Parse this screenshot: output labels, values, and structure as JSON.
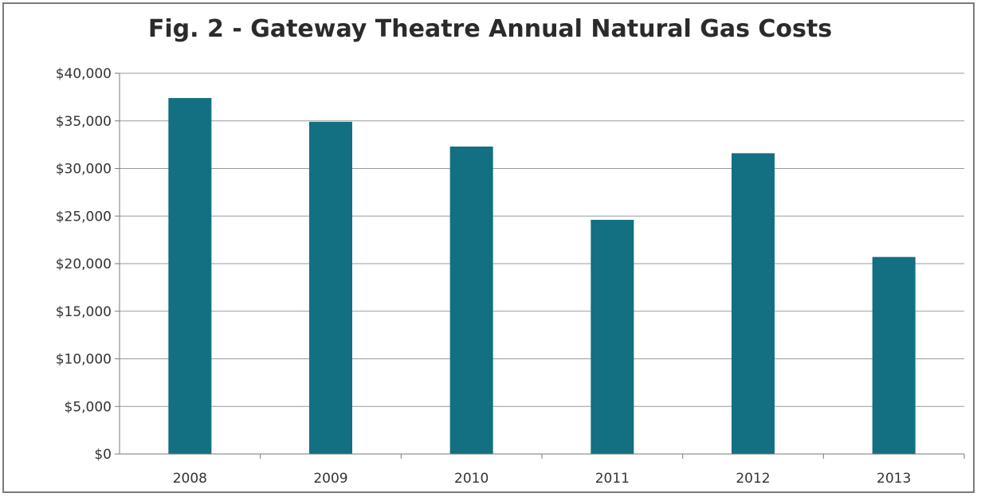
{
  "chart_data": {
    "type": "bar",
    "title": "Fig. 2 - Gateway Theatre Annual Natural Gas Costs",
    "categories": [
      "2008",
      "2009",
      "2010",
      "2011",
      "2012",
      "2013"
    ],
    "values": [
      37400,
      34900,
      32300,
      24600,
      31600,
      20700
    ],
    "ylim": [
      0,
      40000
    ],
    "yticks": [
      0,
      5000,
      10000,
      15000,
      20000,
      25000,
      30000,
      35000,
      40000
    ],
    "ytick_labels": [
      "$0",
      "$5,000",
      "$10,000",
      "$15,000",
      "$20,000",
      "$25,000",
      "$30,000",
      "$35,000",
      "$40,000"
    ],
    "xlabel": "",
    "ylabel": "",
    "grid": true,
    "bar_color": "#136f82",
    "gridline_color": "#9a9a9a"
  }
}
